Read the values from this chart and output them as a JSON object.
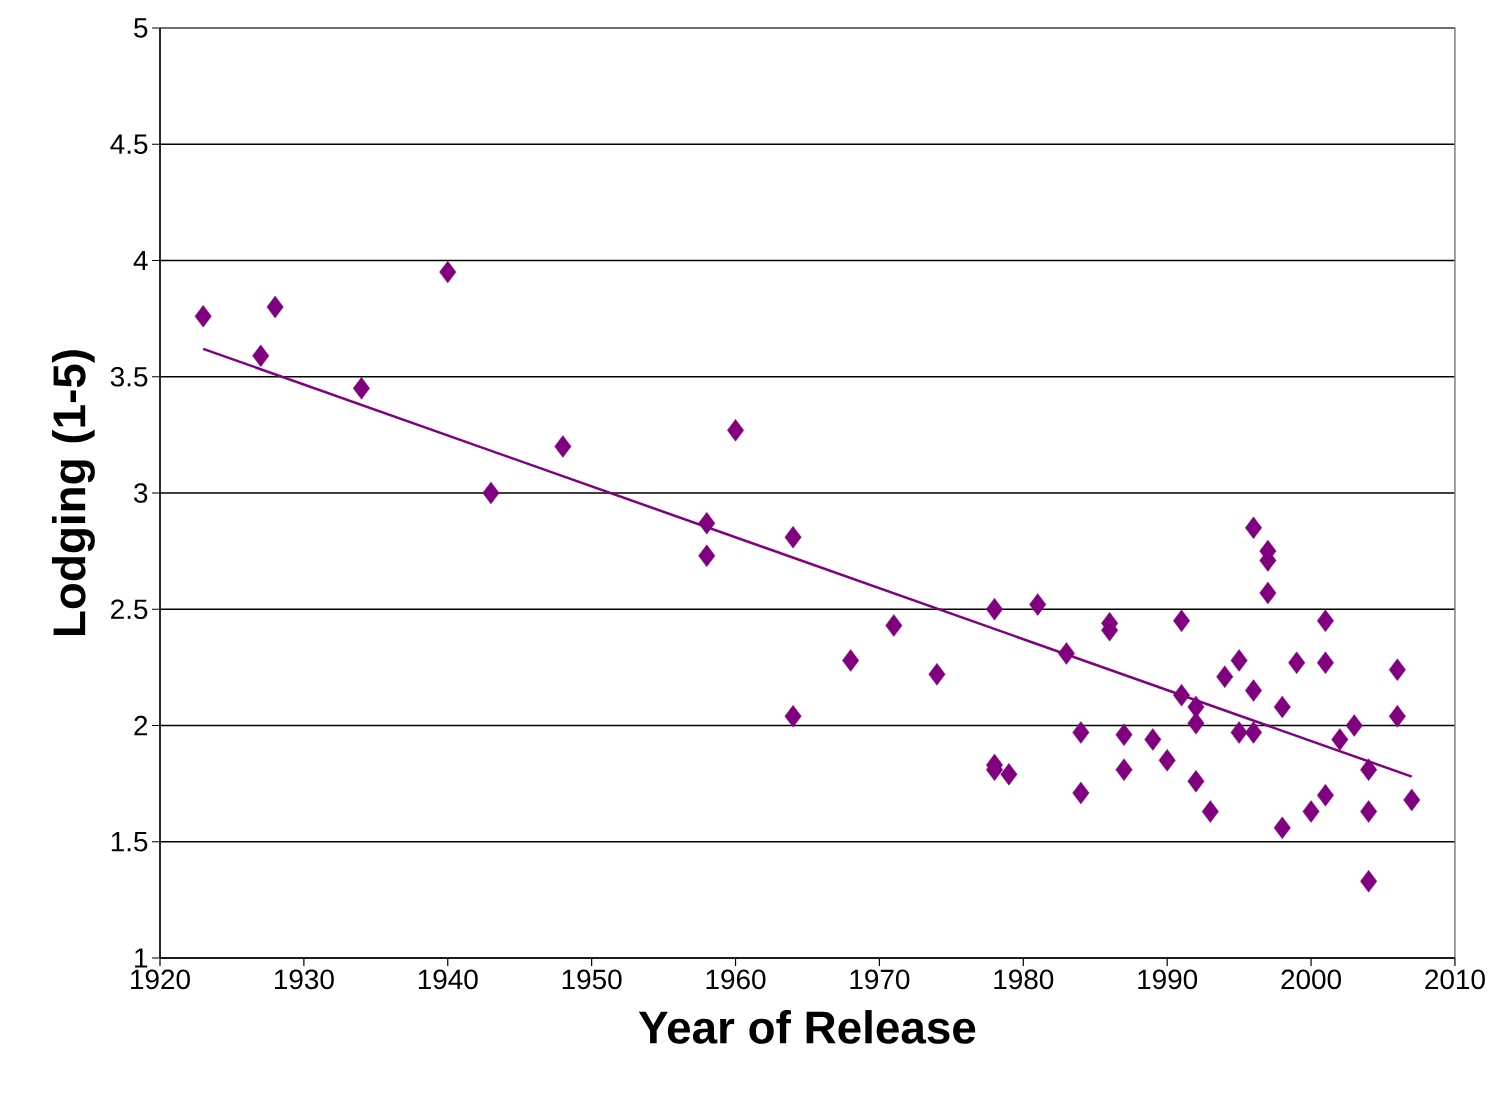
{
  "chart_data": {
    "type": "scatter",
    "xlabel": "Year of Release",
    "ylabel": "Lodging (1-5)",
    "xlim": [
      1920,
      2010
    ],
    "xticks": [
      1920,
      1930,
      1940,
      1950,
      1960,
      1970,
      1980,
      1990,
      2000,
      2010
    ],
    "ylim": [
      1,
      5
    ],
    "yticks": [
      1,
      1.5,
      2,
      2.5,
      3,
      3.5,
      4,
      4.5,
      5
    ],
    "grid": "y",
    "series": [
      {
        "color": "#800080",
        "marker": "diamond",
        "x": [
          1923,
          1927,
          1928,
          1934,
          1940,
          1943,
          1948,
          1958,
          1958,
          1960,
          1964,
          1964,
          1968,
          1971,
          1974,
          1978,
          1978,
          1978,
          1979,
          1981,
          1983,
          1984,
          1984,
          1986,
          1986,
          1987,
          1987,
          1989,
          1990,
          1991,
          1991,
          1992,
          1992,
          1992,
          1993,
          1994,
          1995,
          1995,
          1996,
          1996,
          1996,
          1997,
          1997,
          1997,
          1998,
          1998,
          1999,
          2000,
          2001,
          2001,
          2001,
          2002,
          2003,
          2004,
          2004,
          2004,
          2006,
          2006,
          2007
        ],
        "values": [
          3.76,
          3.59,
          3.8,
          3.45,
          3.95,
          3.0,
          3.2,
          2.87,
          2.73,
          3.27,
          2.81,
          2.04,
          2.28,
          2.43,
          2.22,
          2.5,
          1.83,
          1.81,
          1.79,
          2.52,
          2.31,
          1.97,
          1.71,
          2.44,
          2.41,
          1.96,
          1.81,
          1.94,
          1.85,
          2.45,
          2.13,
          2.08,
          2.01,
          1.76,
          1.63,
          2.21,
          2.28,
          1.97,
          2.85,
          2.15,
          1.97,
          2.75,
          2.71,
          2.57,
          2.08,
          1.56,
          2.27,
          1.63,
          2.45,
          2.27,
          1.7,
          1.94,
          2.0,
          1.81,
          1.63,
          1.33,
          2.24,
          2.04,
          1.68
        ]
      },
      {
        "type": "line",
        "color": "#800080",
        "marker": "none",
        "line_style": "solid",
        "x": [
          1923,
          2007
        ],
        "values": [
          3.62,
          1.78
        ]
      }
    ]
  }
}
